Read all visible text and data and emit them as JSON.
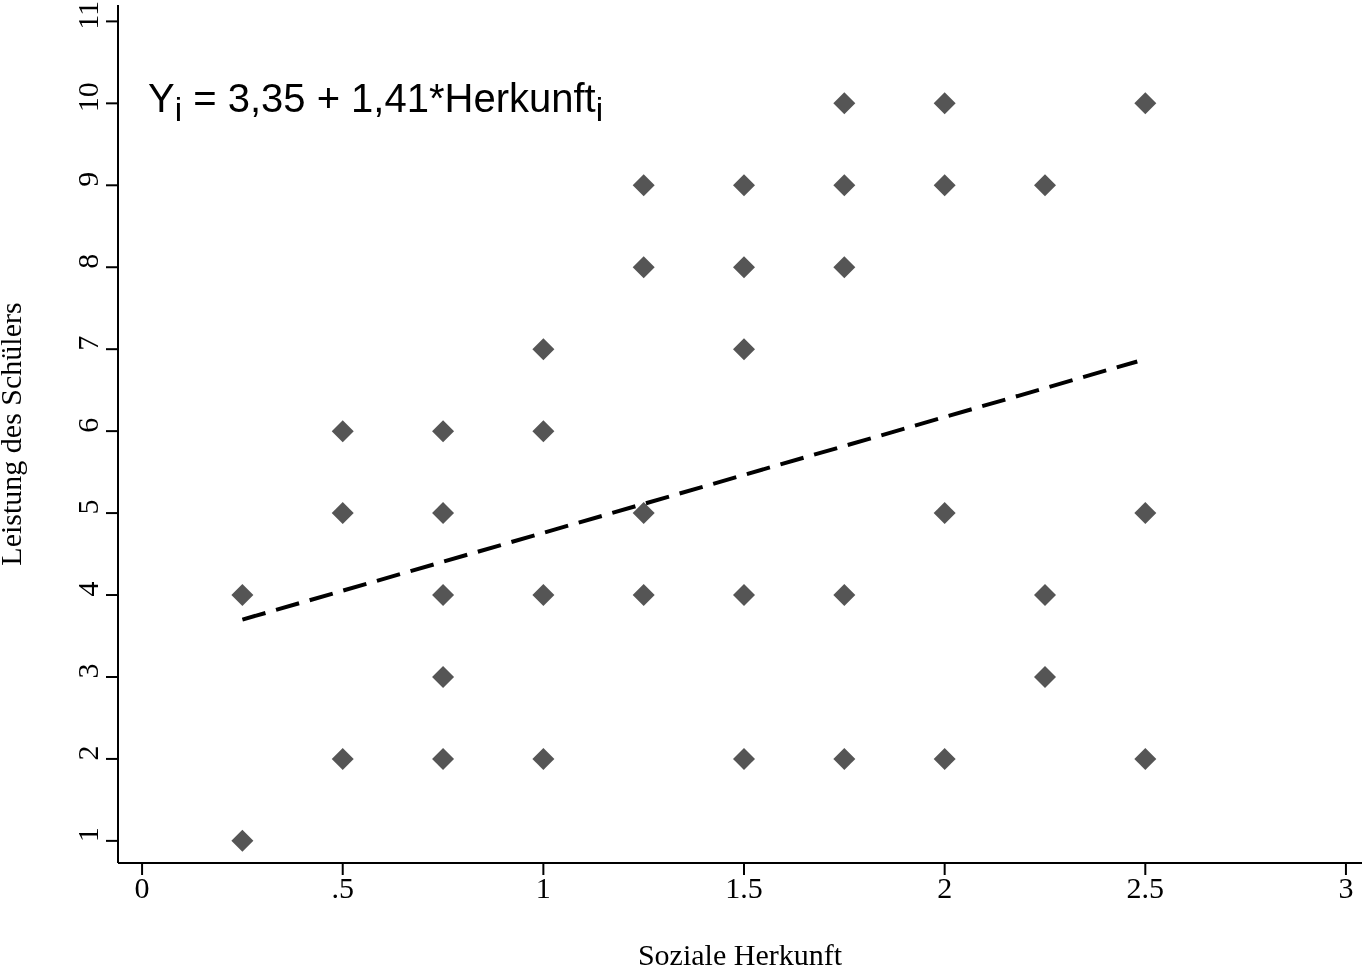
{
  "chart_data": {
    "type": "scatter",
    "xlabel": "Soziale Herkunft",
    "ylabel": "Leistung des Schülers",
    "annotations": [
      "Y$_{i}$ = 3,35 + 1,41*Herkunft$_{i}$"
    ],
    "xlim": [
      -0.06,
      3.04
    ],
    "xticks": [
      0,
      {
        "value": 0.5,
        "label": ".5"
      },
      1,
      1.5,
      2,
      2.5,
      3
    ],
    "ylim": [
      0.73,
      11.2
    ],
    "yticks": [
      1,
      2,
      3,
      4,
      5,
      6,
      7,
      8,
      9,
      10,
      11
    ],
    "series": [
      {
        "color": "#555555",
        "marker": "diamond",
        "x": [
          0.25,
          0.25,
          0.5,
          0.5,
          0.5,
          0.75,
          0.75,
          0.75,
          0.75,
          0.75,
          1,
          1,
          1,
          1,
          1.25,
          1.25,
          1.25,
          1.25,
          1.5,
          1.5,
          1.5,
          1.5,
          1.5,
          1.75,
          1.75,
          1.75,
          1.75,
          1.75,
          2,
          2,
          2,
          2,
          2.25,
          2.25,
          2.25,
          2.5,
          2.5,
          2.5
        ],
        "values": [
          4,
          1,
          6,
          5,
          2,
          6,
          5,
          4,
          3,
          2,
          7,
          6,
          4,
          2,
          9,
          8,
          5,
          4,
          9,
          8,
          7,
          4,
          2,
          10,
          9,
          8,
          4,
          2,
          10,
          9,
          5,
          2,
          9,
          4,
          3,
          10,
          5,
          2
        ]
      },
      {
        "type": "line",
        "color": "#000000",
        "marker": "none",
        "line_style": "dashed",
        "x": [
          0.25,
          2.48
        ],
        "values": [
          3.7,
          6.85
        ]
      }
    ]
  }
}
